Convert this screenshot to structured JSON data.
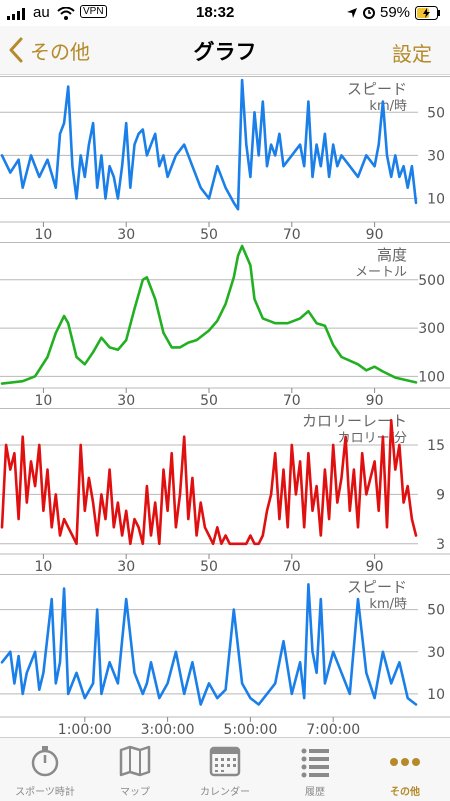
{
  "status": {
    "carrier": "au",
    "vpn": "VPN",
    "time": "18:32",
    "battery": "59%"
  },
  "nav": {
    "back_label": "その他",
    "title": "グラフ",
    "right_label": "設定"
  },
  "colors": {
    "accent": "#b58a2a",
    "speed": "#1a7fe8",
    "altitude": "#22b022",
    "calorie": "#e01010"
  },
  "charts": [
    {
      "title": "スピード",
      "unit": "km/時",
      "y_ticks": [
        "50",
        "30",
        "10"
      ],
      "x_ticks": [
        "10",
        "30",
        "50",
        "70",
        "90"
      ]
    },
    {
      "title": "高度",
      "unit": "メートル",
      "y_ticks": [
        "500",
        "300",
        "100"
      ],
      "x_ticks": [
        "10",
        "30",
        "50",
        "70",
        "90"
      ]
    },
    {
      "title": "カロリーレート",
      "unit": "カロリー/分",
      "y_ticks": [
        "15",
        "9",
        "3"
      ],
      "x_ticks": [
        "10",
        "30",
        "50",
        "70",
        "90"
      ]
    },
    {
      "title": "スピード",
      "unit": "km/時",
      "y_ticks": [
        "50",
        "30",
        "10"
      ],
      "x_ticks": [
        "1:00:00",
        "3:00:00",
        "5:00:00",
        "7:00:00"
      ]
    }
  ],
  "chart_data": [
    {
      "type": "line",
      "title": "スピード",
      "ylabel": "km/時",
      "xlim": [
        0,
        100
      ],
      "ylim": [
        0,
        65
      ],
      "series": [
        {
          "x": [
            0,
            2,
            4,
            5,
            7,
            9,
            11,
            13,
            14,
            15,
            16,
            17,
            18,
            19,
            20,
            21,
            22,
            23,
            24,
            25,
            26,
            27,
            28,
            29,
            30,
            31,
            32,
            33,
            34,
            35,
            36,
            37,
            38,
            39,
            40,
            42,
            44,
            46,
            48,
            50,
            52,
            54,
            56,
            57,
            58,
            59,
            60,
            61,
            62,
            63,
            64,
            65,
            66,
            67,
            68,
            70,
            72,
            73,
            74,
            75,
            76,
            77,
            78,
            79,
            80,
            81,
            82,
            84,
            86,
            88,
            90,
            91,
            92,
            93,
            94,
            95,
            96,
            97,
            98,
            99,
            100
          ],
          "y": [
            30,
            22,
            28,
            15,
            30,
            20,
            28,
            15,
            40,
            45,
            62,
            25,
            10,
            30,
            20,
            35,
            45,
            15,
            30,
            10,
            25,
            20,
            10,
            25,
            45,
            15,
            35,
            40,
            42,
            30,
            35,
            40,
            25,
            30,
            20,
            30,
            35,
            25,
            15,
            10,
            25,
            15,
            8,
            5,
            65,
            35,
            20,
            50,
            30,
            55,
            25,
            35,
            30,
            40,
            25,
            30,
            35,
            25,
            55,
            20,
            35,
            25,
            40,
            20,
            35,
            25,
            30,
            25,
            20,
            30,
            25,
            35,
            55,
            30,
            20,
            30,
            20,
            25,
            15,
            25,
            8
          ]
        }
      ]
    },
    {
      "type": "line",
      "title": "高度",
      "ylabel": "メートル",
      "xlim": [
        0,
        100
      ],
      "ylim": [
        60,
        640
      ],
      "series": [
        {
          "x": [
            0,
            5,
            8,
            11,
            13,
            15,
            16,
            18,
            20,
            22,
            24,
            26,
            28,
            30,
            32,
            34,
            35,
            37,
            39,
            41,
            43,
            45,
            47,
            50,
            52,
            54,
            56,
            57,
            58,
            60,
            61,
            63,
            66,
            69,
            72,
            74,
            76,
            78,
            80,
            82,
            84,
            86,
            88,
            90,
            92,
            95,
            100
          ],
          "y": [
            70,
            80,
            100,
            180,
            280,
            350,
            320,
            180,
            150,
            200,
            260,
            220,
            210,
            250,
            380,
            500,
            510,
            420,
            280,
            220,
            220,
            240,
            250,
            290,
            330,
            400,
            510,
            600,
            640,
            560,
            420,
            340,
            320,
            320,
            340,
            370,
            320,
            310,
            230,
            180,
            165,
            150,
            125,
            140,
            120,
            95,
            75
          ]
        }
      ]
    },
    {
      "type": "line",
      "title": "カロリーレート",
      "ylabel": "カロリー/分",
      "xlim": [
        0,
        100
      ],
      "ylim": [
        2,
        19
      ],
      "series": [
        {
          "x": [
            0,
            1,
            2,
            3,
            4,
            5,
            6,
            7,
            8,
            9,
            10,
            11,
            12,
            13,
            14,
            15,
            16,
            17,
            18,
            19,
            20,
            21,
            22,
            23,
            24,
            25,
            26,
            27,
            28,
            29,
            30,
            31,
            32,
            33,
            34,
            35,
            36,
            37,
            38,
            39,
            40,
            41,
            42,
            43,
            44,
            45,
            46,
            47,
            48,
            49,
            50,
            51,
            52,
            53,
            54,
            55,
            56,
            57,
            58,
            59,
            60,
            61,
            62,
            63,
            64,
            65,
            66,
            67,
            68,
            69,
            70,
            71,
            72,
            73,
            74,
            75,
            76,
            77,
            78,
            79,
            80,
            81,
            82,
            83,
            84,
            85,
            86,
            87,
            88,
            89,
            90,
            91,
            92,
            93,
            94,
            95,
            96,
            97,
            98,
            99,
            100
          ],
          "y": [
            5,
            15,
            12,
            14,
            6,
            16,
            8,
            13,
            10,
            15,
            7,
            12,
            5,
            9,
            4,
            6,
            5,
            4,
            3,
            15,
            7,
            11,
            8,
            4,
            9,
            6,
            12,
            5,
            8,
            4,
            7,
            3,
            6,
            5,
            3,
            10,
            4,
            8,
            3,
            12,
            7,
            14,
            5,
            9,
            16,
            6,
            11,
            4,
            8,
            5,
            4,
            3,
            5,
            3,
            4,
            3,
            3,
            3,
            3,
            3,
            4,
            3,
            3,
            4,
            7,
            9,
            14,
            6,
            12,
            5,
            15,
            9,
            13,
            5,
            14,
            7,
            10,
            4,
            12,
            6,
            15,
            8,
            11,
            16,
            7,
            12,
            5,
            14,
            9,
            11,
            13,
            7,
            16,
            5,
            18,
            12,
            15,
            8,
            10,
            6,
            4
          ]
        }
      ]
    },
    {
      "type": "line",
      "title": "スピード",
      "ylabel": "km/時",
      "ylim": [
        0,
        65
      ],
      "x_ticks": [
        "1:00:00",
        "3:00:00",
        "5:00:00",
        "7:00:00"
      ],
      "series": [
        {
          "x": [
            0,
            2,
            3,
            4,
            5,
            6,
            8,
            9,
            10,
            12,
            13,
            14,
            15,
            16,
            18,
            20,
            22,
            23,
            24,
            26,
            28,
            30,
            32,
            34,
            35,
            36,
            38,
            40,
            42,
            44,
            46,
            48,
            50,
            52,
            54,
            56,
            58,
            60,
            62,
            64,
            66,
            68,
            70,
            72,
            73,
            74,
            75,
            76,
            77,
            78,
            80,
            82,
            84,
            86,
            88,
            90,
            92,
            94,
            96,
            98,
            100
          ],
          "y": [
            25,
            30,
            15,
            28,
            10,
            20,
            30,
            12,
            20,
            55,
            15,
            25,
            60,
            10,
            20,
            8,
            15,
            50,
            10,
            25,
            15,
            55,
            20,
            10,
            15,
            25,
            8,
            15,
            30,
            10,
            25,
            5,
            15,
            8,
            12,
            50,
            15,
            8,
            5,
            10,
            15,
            35,
            10,
            25,
            8,
            62,
            30,
            20,
            55,
            15,
            30,
            20,
            10,
            55,
            20,
            8,
            30,
            15,
            25,
            8,
            5
          ]
        }
      ]
    }
  ],
  "tabs": [
    {
      "label": "スポーツ時計",
      "icon": "stopwatch-icon"
    },
    {
      "label": "マップ",
      "icon": "map-icon"
    },
    {
      "label": "カレンダー",
      "icon": "calendar-icon"
    },
    {
      "label": "履歴",
      "icon": "list-icon"
    },
    {
      "label": "その他",
      "icon": "more-icon",
      "active": true
    }
  ]
}
